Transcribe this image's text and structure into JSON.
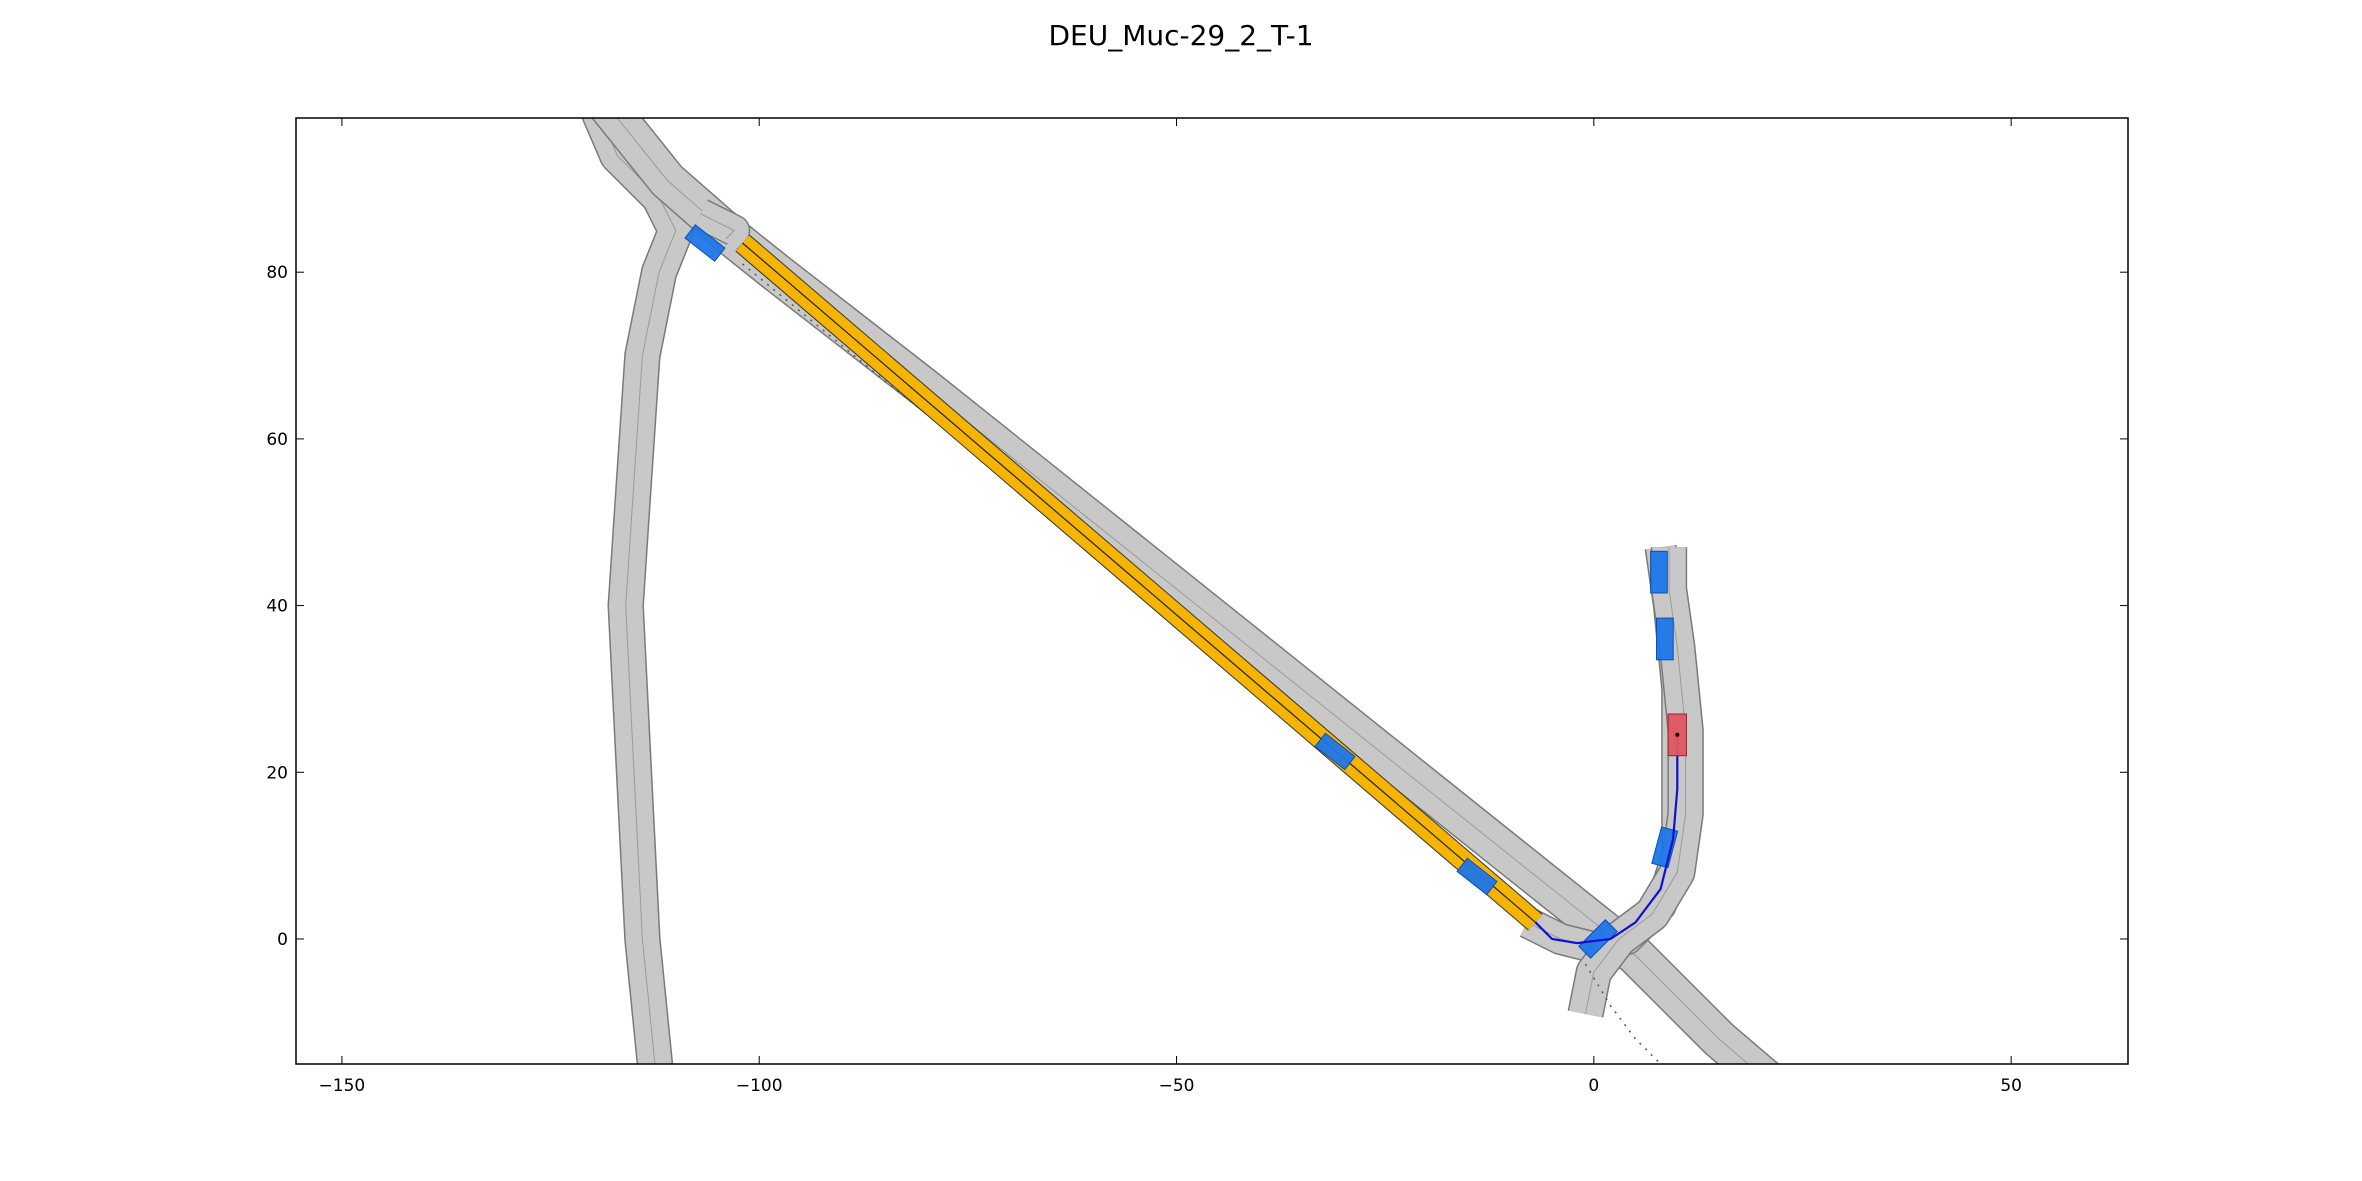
{
  "chart_data": {
    "type": "scatter",
    "title": "DEU_Muc-29_2_T-1",
    "xlabel": "",
    "ylabel": "",
    "xlim": [
      -155.5,
      64
    ],
    "ylim": [
      -15,
      98.5
    ],
    "x_ticks": [
      {
        "value": -150,
        "label": "−150"
      },
      {
        "value": -100,
        "label": "−100"
      },
      {
        "value": -50,
        "label": "−50"
      },
      {
        "value": 0,
        "label": "0"
      },
      {
        "value": 50,
        "label": "50"
      }
    ],
    "y_ticks": [
      {
        "value": 0,
        "label": "0"
      },
      {
        "value": 20,
        "label": "20"
      },
      {
        "value": 40,
        "label": "40"
      },
      {
        "value": 60,
        "label": "60"
      },
      {
        "value": 80,
        "label": "80"
      }
    ],
    "grid": false,
    "colors": {
      "road": "#c8c8c8",
      "road_edge": "#7a7a7a",
      "goal_region": "#f5b400",
      "obstacle": "#1f77e8",
      "ego_vehicle": "#e05560",
      "trajectory": "#1010d0"
    },
    "roads": [
      {
        "name": "west-arc",
        "width": 4,
        "points": [
          [
            -120,
            101
          ],
          [
            -117,
            94
          ],
          [
            -112,
            89
          ],
          [
            -110,
            85
          ],
          [
            -112,
            80
          ],
          [
            -114,
            70
          ],
          [
            -115,
            55
          ],
          [
            -116,
            40
          ],
          [
            -115,
            20
          ],
          [
            -114,
            0
          ],
          [
            -112,
            -20
          ]
        ]
      },
      {
        "name": "diagonal",
        "width": 4.5,
        "points": [
          [
            -119,
            101
          ],
          [
            -111,
            91
          ],
          [
            -103,
            84
          ],
          [
            -98,
            80
          ],
          [
            -80,
            66
          ],
          [
            -60,
            50
          ],
          [
            -40,
            34
          ],
          [
            -20,
            18
          ],
          [
            -5,
            6
          ],
          [
            5,
            -2
          ],
          [
            15,
            -12
          ],
          [
            22,
            -18
          ]
        ]
      },
      {
        "name": "connector",
        "width": 3.5,
        "points": [
          [
            -104,
            84
          ],
          [
            -103,
            85
          ],
          [
            -107,
            87
          ]
        ]
      },
      {
        "name": "left-turn",
        "width": 3.5,
        "points": [
          [
            -8,
            2
          ],
          [
            -4,
            0
          ],
          [
            0,
            -1
          ],
          [
            4,
            0
          ],
          [
            8,
            4
          ],
          [
            10,
            10
          ],
          [
            10,
            20
          ],
          [
            10,
            30
          ],
          [
            9,
            40
          ],
          [
            8,
            47
          ]
        ]
      },
      {
        "name": "north-south",
        "width": 4,
        "points": [
          [
            -1,
            -9
          ],
          [
            0,
            -4
          ],
          [
            3,
            0
          ],
          [
            7,
            3
          ],
          [
            10,
            8
          ],
          [
            11,
            15
          ],
          [
            11,
            25
          ],
          [
            10,
            35
          ],
          [
            9,
            42
          ],
          [
            9,
            47
          ]
        ]
      }
    ],
    "goal_region": {
      "from": [
        -102,
        83.5
      ],
      "to": [
        -7,
        2
      ]
    },
    "obstacles": [
      {
        "x": -106.5,
        "y": 83.5,
        "length": 4.5,
        "width": 2,
        "heading_deg": -38
      },
      {
        "x": -31,
        "y": 22.5,
        "length": 4.5,
        "width": 2,
        "heading_deg": -38
      },
      {
        "x": -14,
        "y": 7.5,
        "length": 4.5,
        "width": 2,
        "heading_deg": -38
      },
      {
        "x": 0.5,
        "y": 0,
        "length": 4.5,
        "width": 2,
        "heading_deg": 45
      },
      {
        "x": 8.5,
        "y": 11,
        "length": 4.5,
        "width": 2,
        "heading_deg": 75
      },
      {
        "x": 8.5,
        "y": 36,
        "length": 5,
        "width": 2,
        "heading_deg": 90
      },
      {
        "x": 7.8,
        "y": 44,
        "length": 5,
        "width": 2,
        "heading_deg": 90
      }
    ],
    "ego_vehicle": {
      "x": 10,
      "y": 24.5,
      "length": 5,
      "width": 2.2,
      "heading_deg": 90
    },
    "trajectory": [
      [
        10,
        24.5
      ],
      [
        10,
        18
      ],
      [
        9.5,
        12
      ],
      [
        8,
        6
      ],
      [
        5,
        2
      ],
      [
        2,
        0
      ],
      [
        -2,
        -0.5
      ],
      [
        -5,
        0
      ],
      [
        -7,
        2
      ]
    ],
    "dotted_lanes": [
      [
        [
          -102,
          81
        ],
        [
          -85,
          67
        ],
        [
          -70,
          55
        ],
        [
          -55,
          43
        ]
      ],
      [
        [
          -1,
          -3
        ],
        [
          2,
          -8
        ],
        [
          5,
          -12
        ],
        [
          8,
          -15
        ]
      ]
    ]
  }
}
